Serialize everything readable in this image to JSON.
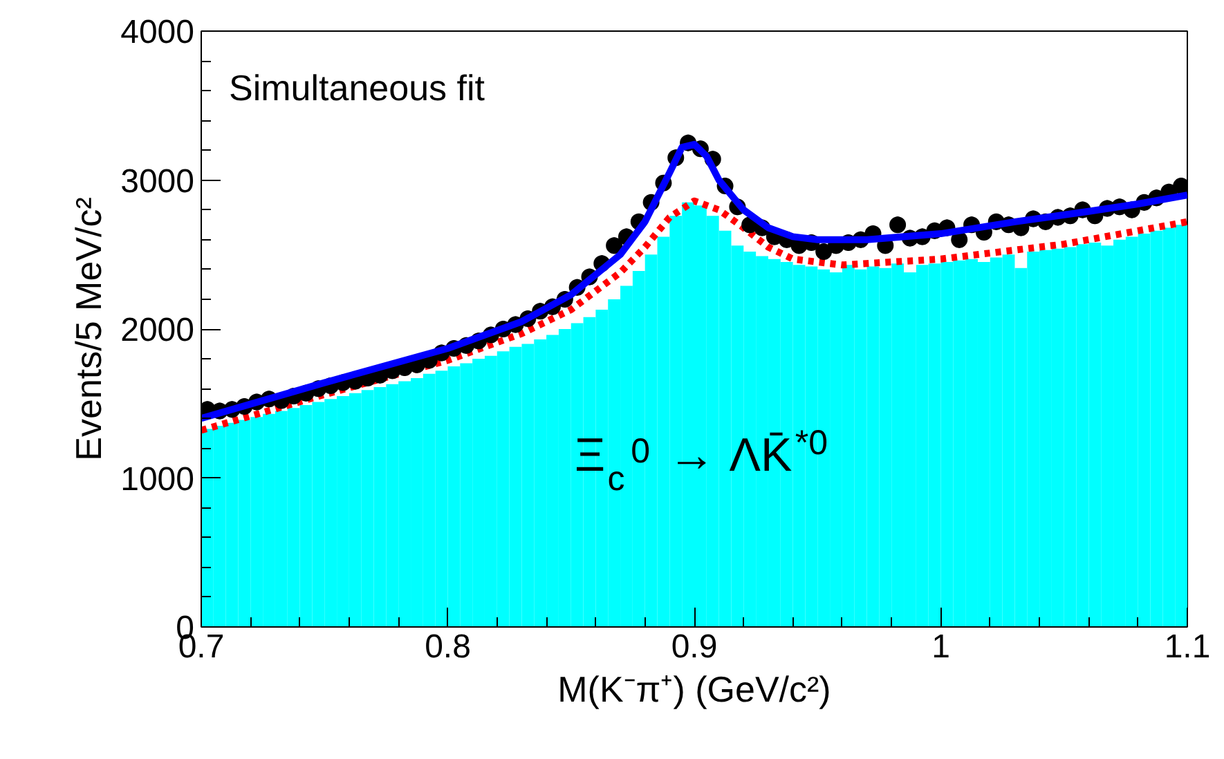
{
  "chart_data": {
    "type": "scatter",
    "xlabel": "M(K⁻π⁺) (GeV/c²)",
    "ylabel": "Events/5 MeV/c²",
    "annotations": [
      "Simultaneous fit",
      "Ξ$_{c}$$^{0}$ → ΛK̄$^{*0}$"
    ],
    "xlim": [
      0.7,
      1.1
    ],
    "xticks": [
      0.7,
      0.8,
      0.9,
      1,
      1.1
    ],
    "ylim": [
      0,
      4000
    ],
    "yticks": [
      0,
      1000,
      2000,
      3000,
      4000
    ],
    "grid": false,
    "series": [
      {
        "type": "histogram",
        "color": "#00ffff",
        "bins": [
          0.7,
          0.705,
          0.71,
          0.715,
          0.72,
          0.725,
          0.73,
          0.735,
          0.74,
          0.745,
          0.75,
          0.755,
          0.76,
          0.765,
          0.77,
          0.775,
          0.78,
          0.785,
          0.79,
          0.795,
          0.8,
          0.805,
          0.81,
          0.815,
          0.82,
          0.825,
          0.83,
          0.835,
          0.84,
          0.845,
          0.85,
          0.855,
          0.86,
          0.865,
          0.87,
          0.875,
          0.88,
          0.885,
          0.89,
          0.895,
          0.9,
          0.905,
          0.91,
          0.915,
          0.92,
          0.925,
          0.93,
          0.935,
          0.94,
          0.945,
          0.95,
          0.955,
          0.96,
          0.965,
          0.97,
          0.975,
          0.98,
          0.985,
          0.99,
          0.995,
          1.0,
          1.005,
          1.01,
          1.015,
          1.02,
          1.025,
          1.03,
          1.035,
          1.04,
          1.045,
          1.05,
          1.055,
          1.06,
          1.065,
          1.07,
          1.075,
          1.08,
          1.085,
          1.09,
          1.095,
          1.1
        ],
        "values": [
          1330,
          1350,
          1370,
          1390,
          1410,
          1430,
          1450,
          1470,
          1490,
          1510,
          1530,
          1550,
          1570,
          1590,
          1610,
          1630,
          1650,
          1670,
          1700,
          1720,
          1750,
          1770,
          1800,
          1820,
          1850,
          1880,
          1900,
          1930,
          1960,
          2000,
          2040,
          2080,
          2130,
          2200,
          2290,
          2390,
          2500,
          2620,
          2760,
          2850,
          2830,
          2760,
          2660,
          2560,
          2520,
          2490,
          2470,
          2450,
          2430,
          2420,
          2400,
          2380,
          2430,
          2400,
          2420,
          2410,
          2440,
          2380,
          2430,
          2440,
          2450,
          2460,
          2470,
          2450,
          2480,
          2500,
          2410,
          2520,
          2530,
          2540,
          2550,
          2570,
          2580,
          2560,
          2600,
          2620,
          2640,
          2660,
          2680,
          2700
        ]
      },
      {
        "type": "line",
        "color": "#ff0000",
        "line_style": "dotted",
        "x": [
          0.7,
          0.75,
          0.8,
          0.83,
          0.85,
          0.87,
          0.88,
          0.89,
          0.9,
          0.91,
          0.92,
          0.93,
          0.94,
          0.96,
          1.0,
          1.05,
          1.1
        ],
        "values": [
          1320,
          1560,
          1790,
          1970,
          2130,
          2380,
          2550,
          2750,
          2860,
          2800,
          2680,
          2550,
          2470,
          2430,
          2470,
          2570,
          2720
        ]
      },
      {
        "color": "#000000",
        "marker": "circle",
        "x": [
          0.7025,
          0.7075,
          0.7125,
          0.7175,
          0.7225,
          0.7275,
          0.7325,
          0.7375,
          0.7425,
          0.7475,
          0.7525,
          0.7575,
          0.7625,
          0.7675,
          0.7725,
          0.7775,
          0.7825,
          0.7875,
          0.7925,
          0.7975,
          0.8025,
          0.8075,
          0.8125,
          0.8175,
          0.8225,
          0.8275,
          0.8325,
          0.8375,
          0.8425,
          0.8475,
          0.8525,
          0.8575,
          0.8625,
          0.8675,
          0.8725,
          0.8775,
          0.8825,
          0.8875,
          0.8925,
          0.8975,
          0.9025,
          0.9075,
          0.9125,
          0.9175,
          0.9225,
          0.9275,
          0.9325,
          0.9375,
          0.9425,
          0.9475,
          0.9525,
          0.9575,
          0.9625,
          0.9675,
          0.9725,
          0.9775,
          0.9825,
          0.9875,
          0.9925,
          0.9975,
          1.0025,
          1.0075,
          1.0125,
          1.0175,
          1.0225,
          1.0275,
          1.0325,
          1.0375,
          1.0425,
          1.0475,
          1.0525,
          1.0575,
          1.0625,
          1.0675,
          1.0725,
          1.0775,
          1.0825,
          1.0875,
          1.0925,
          1.0975
        ],
        "values": [
          1460,
          1450,
          1460,
          1480,
          1510,
          1530,
          1520,
          1550,
          1570,
          1600,
          1620,
          1640,
          1650,
          1670,
          1690,
          1720,
          1740,
          1760,
          1790,
          1840,
          1870,
          1890,
          1920,
          1960,
          2000,
          2030,
          2070,
          2120,
          2150,
          2200,
          2280,
          2350,
          2440,
          2560,
          2620,
          2720,
          2850,
          2980,
          3150,
          3250,
          3210,
          3140,
          2960,
          2820,
          2700,
          2680,
          2620,
          2600,
          2560,
          2580,
          2520,
          2560,
          2580,
          2600,
          2640,
          2560,
          2700,
          2610,
          2620,
          2660,
          2680,
          2600,
          2700,
          2650,
          2720,
          2700,
          2680,
          2740,
          2720,
          2750,
          2760,
          2800,
          2760,
          2810,
          2820,
          2800,
          2850,
          2880,
          2920,
          2960
        ],
        "errors": [
          55,
          55,
          55,
          55,
          55,
          55,
          55,
          55,
          55,
          55,
          55,
          55,
          55,
          55,
          55,
          55,
          55,
          55,
          55,
          55,
          55,
          55,
          55,
          55,
          55,
          55,
          55,
          55,
          55,
          55,
          55,
          55,
          55,
          55,
          55,
          55,
          55,
          55,
          55,
          55,
          55,
          55,
          55,
          55,
          55,
          55,
          55,
          55,
          55,
          55,
          55,
          55,
          55,
          55,
          55,
          55,
          55,
          55,
          55,
          55,
          55,
          55,
          55,
          55,
          55,
          55,
          55,
          55,
          55,
          55,
          55,
          55,
          55,
          55,
          55,
          55,
          55,
          55,
          55,
          55
        ]
      },
      {
        "type": "line",
        "color": "#0000ff",
        "line_style": "solid",
        "x": [
          0.7,
          0.75,
          0.8,
          0.83,
          0.85,
          0.87,
          0.88,
          0.89,
          0.895,
          0.9,
          0.905,
          0.91,
          0.92,
          0.93,
          0.94,
          0.95,
          0.97,
          1.0,
          1.03,
          1.06,
          1.08,
          1.1
        ],
        "values": [
          1400,
          1640,
          1870,
          2050,
          2230,
          2500,
          2720,
          3050,
          3220,
          3240,
          3160,
          3000,
          2800,
          2680,
          2620,
          2600,
          2600,
          2640,
          2720,
          2790,
          2840,
          2900
        ]
      }
    ]
  }
}
